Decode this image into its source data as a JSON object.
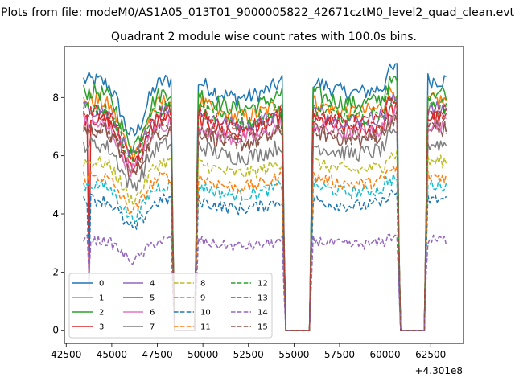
{
  "chart_data": {
    "type": "line",
    "suptitle": "Plots from file: modeM0/AS1A05_013T01_9000005822_42671cztM0_level2_quad_clean.evt",
    "title": "Quadrant 2 module wise count rates with 100.0s bins.",
    "xlabel": "",
    "ylabel": "",
    "offset_text": "+4.301e8",
    "xlim": [
      42400,
      64300
    ],
    "ylim": [
      -0.45,
      9.75
    ],
    "xticks": [
      42500,
      45000,
      47500,
      50000,
      52500,
      55000,
      57500,
      60000,
      62500
    ],
    "xtick_labels": [
      "42500",
      "45000",
      "47500",
      "50000",
      "52500",
      "55000",
      "57500",
      "60000",
      "62500"
    ],
    "yticks": [
      0,
      2,
      4,
      6,
      8
    ],
    "ytick_labels": [
      "0",
      "2",
      "4",
      "6",
      "8"
    ],
    "grid": false,
    "legend_placement": "lower-left",
    "legend_columns": 4,
    "segments": [
      {
        "x_start": 43450,
        "x_end": 48350
      },
      {
        "x_start": 48450,
        "x_end": 49550,
        "zero": true
      },
      {
        "x_start": 49650,
        "x_end": 54450
      },
      {
        "x_start": 54550,
        "x_end": 55850,
        "zero": true
      },
      {
        "x_start": 55950,
        "x_end": 60750
      },
      {
        "x_start": 60850,
        "x_end": 62150,
        "zero": true
      },
      {
        "x_start": 62250,
        "x_end": 63350
      }
    ],
    "series": [
      {
        "name": "0",
        "color": "#1f77b4",
        "dash": "solid",
        "level": 8.6
      },
      {
        "name": "1",
        "color": "#ff7f0e",
        "dash": "solid",
        "level": 7.9
      },
      {
        "name": "2",
        "color": "#2ca02c",
        "dash": "solid",
        "level": 8.2
      },
      {
        "name": "3",
        "color": "#d62728",
        "dash": "solid",
        "level": 7.3
      },
      {
        "name": "4",
        "color": "#9467bd",
        "dash": "solid",
        "level": 7.6
      },
      {
        "name": "5",
        "color": "#8c564b",
        "dash": "solid",
        "level": 6.9
      },
      {
        "name": "6",
        "color": "#e377c2",
        "dash": "solid",
        "level": 7.1
      },
      {
        "name": "7",
        "color": "#7f7f7f",
        "dash": "solid",
        "level": 6.4
      },
      {
        "name": "8",
        "color": "#bcbd22",
        "dash": "dashed",
        "level": 5.8
      },
      {
        "name": "9",
        "color": "#17becf",
        "dash": "dashed",
        "level": 5.0
      },
      {
        "name": "10",
        "color": "#1f77b4",
        "dash": "dashed",
        "level": 4.5
      },
      {
        "name": "11",
        "color": "#ff7f0e",
        "dash": "dashed",
        "level": 5.3
      },
      {
        "name": "12",
        "color": "#2ca02c",
        "dash": "dashed",
        "level": 7.7
      },
      {
        "name": "13",
        "color": "#d62728",
        "dash": "dashed",
        "level": 7.5
      },
      {
        "name": "14",
        "color": "#9467bd",
        "dash": "dashed",
        "level": 3.1
      },
      {
        "name": "15",
        "color": "#8c564b",
        "dash": "dashed",
        "level": 7.0
      }
    ]
  }
}
